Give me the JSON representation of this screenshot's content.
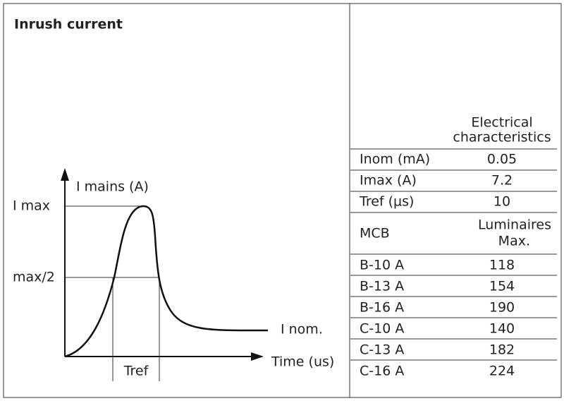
{
  "header": {
    "title": "Inrush current"
  },
  "diagram": {
    "y_axis_label": "I mains (A)",
    "x_axis_label": "Time (us)",
    "i_max_label": "I max",
    "half_max_label": "max/2",
    "i_nom_label": "I nom.",
    "tref_label": "Tref"
  },
  "table": {
    "header": [
      "Electrical",
      "characteristics"
    ],
    "rows": [
      [
        "Inom (mA)",
        0.05
      ],
      [
        "Imax (A)",
        7.2
      ],
      [
        "Tref (µs)",
        10
      ]
    ],
    "mcb_header": [
      "MCB",
      "Luminaires",
      "Max."
    ],
    "mcb_rows": [
      [
        "B-10 A",
        118
      ],
      [
        "B-13 A",
        154
      ],
      [
        "B-16 A",
        190
      ],
      [
        "C-10 A",
        140
      ],
      [
        "C-13 A",
        182
      ],
      [
        "C-16 A",
        224
      ]
    ]
  }
}
